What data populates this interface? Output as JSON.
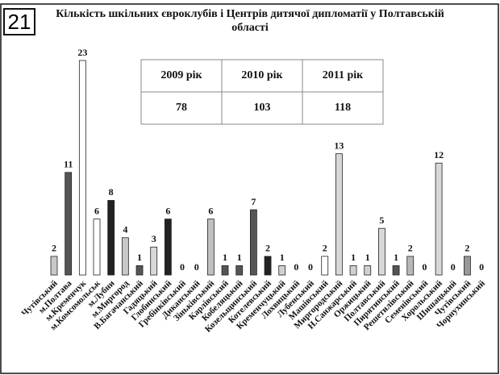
{
  "badge": "21",
  "chart_data": {
    "type": "bar",
    "title": "Кількість шкільних євроклубів і Центрів дитячої дипломатії у Полтавській області",
    "categories": [
      "Чутівський",
      "м.Полтава",
      "м.Кременчук",
      "м.Комсомольськ",
      "м.Лубни",
      "м.Миргород",
      "В.Багачанський",
      "Гадяцький",
      "Глобинський",
      "Гребінківський",
      "Диканський",
      "Зіньківський",
      "Карлівський",
      "Кобеляцький",
      "Козельщинський",
      "Котелевський",
      "Кременчуцький",
      "Лохвицький",
      "Лубенський",
      "Машівський",
      "Миргородський",
      "Н.Санжарський",
      "Оржицький",
      "Полтавський",
      "Пирятинський",
      "Решетилівський",
      "Семенівський",
      "Хорольський",
      "Шишацький",
      "Чутівський",
      "Чорнухинський"
    ],
    "values": [
      2,
      11,
      23,
      6,
      8,
      4,
      1,
      3,
      6,
      0,
      0,
      6,
      1,
      1,
      7,
      2,
      1,
      0,
      0,
      2,
      13,
      1,
      1,
      5,
      1,
      2,
      0,
      12,
      0,
      2,
      0
    ],
    "colors": [
      "#c8c8c8",
      "#555555",
      "#ffffff",
      "#ffffff",
      "#222222",
      "#c8c8c8",
      "#555555",
      "#d8d8d8",
      "#222222",
      "#c8c8c8",
      "#c8c8c8",
      "#c0c0c0",
      "#555555",
      "#555555",
      "#555555",
      "#222222",
      "#d0d0d0",
      "#c8c8c8",
      "#c8c8c8",
      "#ffffff",
      "#d8d8d8",
      "#d0d0d0",
      "#d0d0d0",
      "#d8d8d8",
      "#555555",
      "#b8b8b8",
      "#c8c8c8",
      "#d8d8d8",
      "#c8c8c8",
      "#999999",
      "#c8c8c8"
    ],
    "ylim": [
      0,
      23
    ],
    "table": {
      "header": [
        "2009 рік",
        "2010 рік",
        "2011 рік"
      ],
      "values": [
        "78",
        "103",
        "118"
      ]
    }
  }
}
